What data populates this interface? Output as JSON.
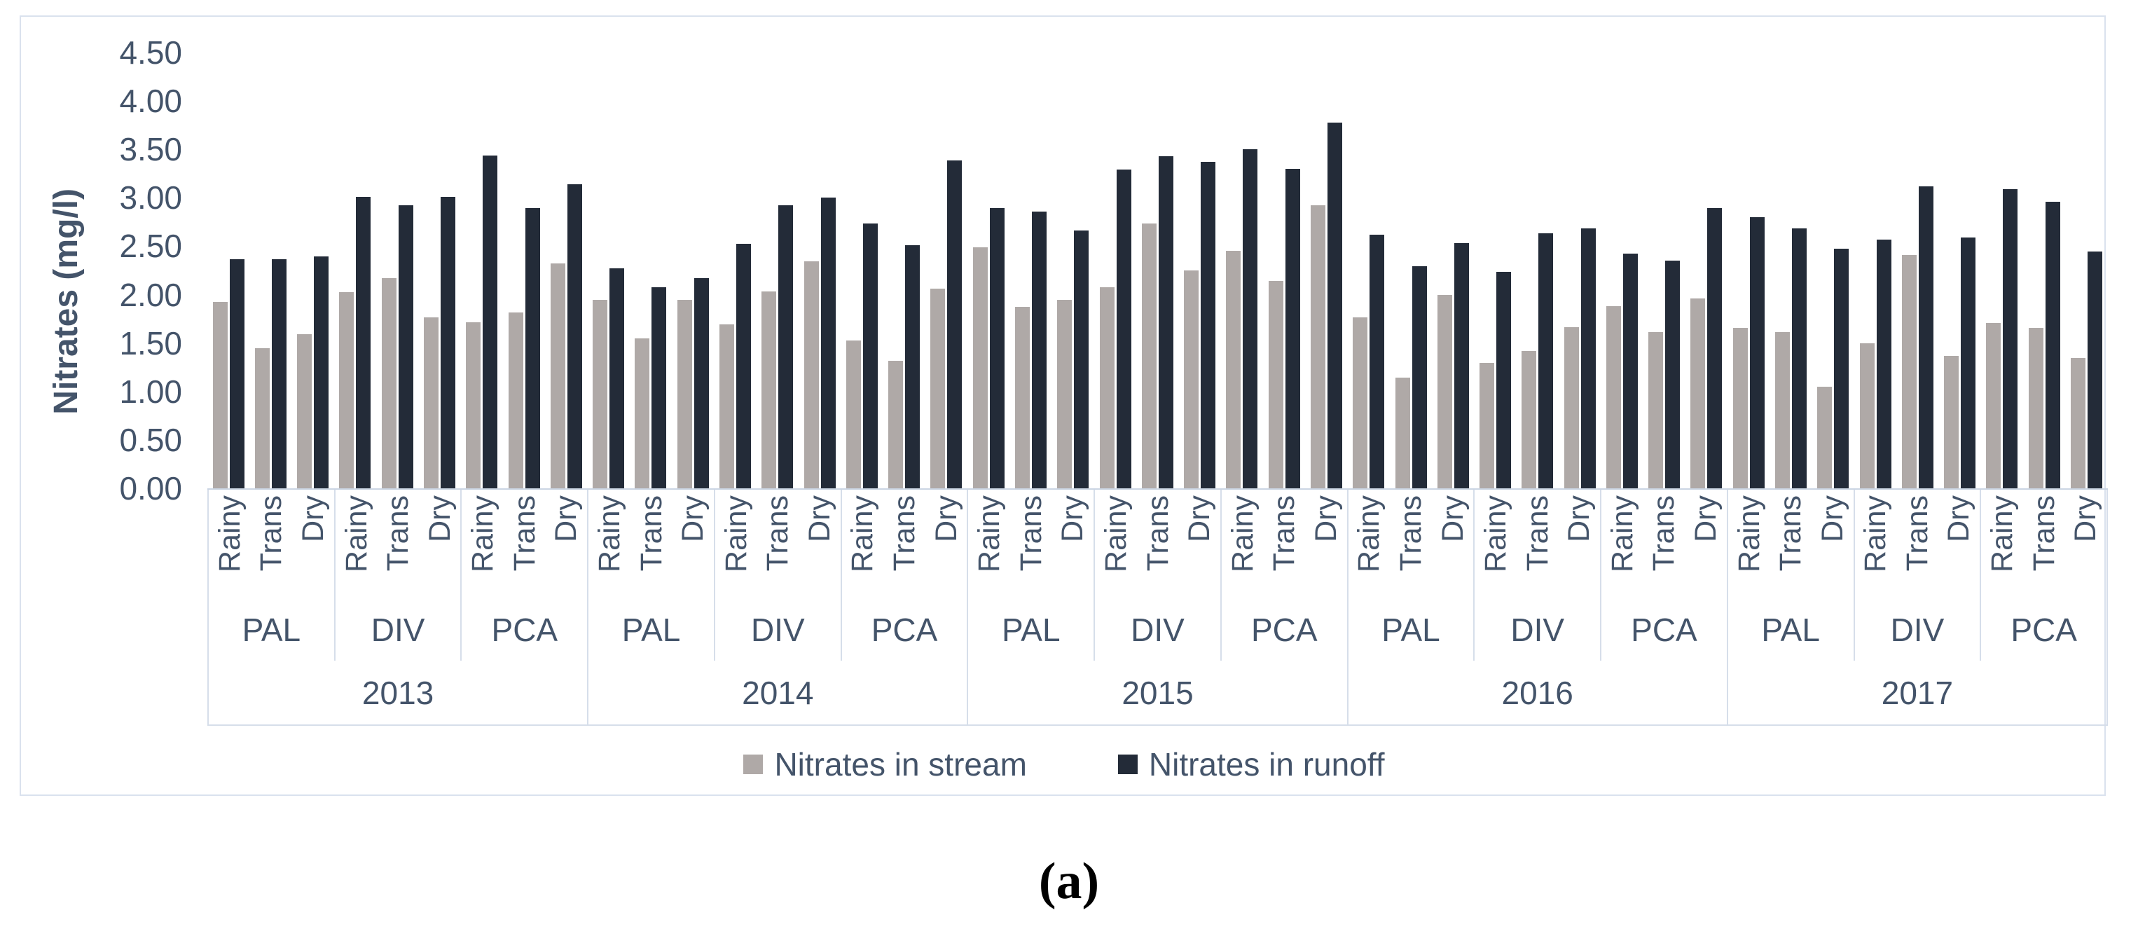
{
  "figure": {
    "caption": "(a)"
  },
  "colors": {
    "stream": "#AFA9A7",
    "runoff": "#232B38",
    "axis_text": "#44546A",
    "grid_line": "#D6DEEA"
  },
  "legend": {
    "items": [
      {
        "label": "Nitrates in stream",
        "color": "#AFA9A7"
      },
      {
        "label": "Nitrates in runoff",
        "color": "#232B38"
      }
    ]
  },
  "chart_data": {
    "type": "bar",
    "title": "",
    "xlabel": "",
    "ylabel": "Nitrates (mg/l)",
    "ylim": [
      0,
      4.5
    ],
    "ytick_step": 0.5,
    "yticks": [
      "4.50",
      "4.00",
      "3.50",
      "3.00",
      "2.50",
      "2.00",
      "1.50",
      "1.00",
      "0.50",
      "0.00"
    ],
    "grid": false,
    "legend_position": "bottom",
    "seasons": [
      "Rainy",
      "Trans",
      "Dry"
    ],
    "series_names": [
      "Nitrates in stream",
      "Nitrates in runoff"
    ],
    "years": [
      {
        "year": "2013",
        "sites": [
          {
            "site": "PAL",
            "stream": [
              1.93,
              1.45,
              1.6
            ],
            "runoff": [
              2.37,
              2.37,
              2.4
            ]
          },
          {
            "site": "DIV",
            "stream": [
              2.03,
              2.18,
              1.77
            ],
            "runoff": [
              3.02,
              2.93,
              3.02
            ]
          },
          {
            "site": "PCA",
            "stream": [
              1.72,
              1.82,
              2.33
            ],
            "runoff": [
              3.45,
              2.9,
              3.15
            ]
          }
        ]
      },
      {
        "year": "2014",
        "sites": [
          {
            "site": "PAL",
            "stream": [
              1.95,
              1.55,
              1.95
            ],
            "runoff": [
              2.28,
              2.08,
              2.18
            ]
          },
          {
            "site": "DIV",
            "stream": [
              1.7,
              2.04,
              2.35
            ],
            "runoff": [
              2.53,
              2.93,
              3.01
            ]
          },
          {
            "site": "PCA",
            "stream": [
              1.53,
              1.32,
              2.07
            ],
            "runoff": [
              2.74,
              2.52,
              3.4
            ]
          }
        ]
      },
      {
        "year": "2015",
        "sites": [
          {
            "site": "PAL",
            "stream": [
              2.5,
              1.88,
              1.95
            ],
            "runoff": [
              2.9,
              2.87,
              2.67
            ]
          },
          {
            "site": "DIV",
            "stream": [
              2.08,
              2.74,
              2.26
            ],
            "runoff": [
              3.3,
              3.44,
              3.38
            ]
          },
          {
            "site": "PCA",
            "stream": [
              2.46,
              2.15,
              2.93
            ],
            "runoff": [
              3.51,
              3.31,
              3.79
            ]
          }
        ]
      },
      {
        "year": "2016",
        "sites": [
          {
            "site": "PAL",
            "stream": [
              1.77,
              1.15,
              2.0
            ],
            "runoff": [
              2.63,
              2.3,
              2.54
            ]
          },
          {
            "site": "DIV",
            "stream": [
              1.3,
              1.42,
              1.67
            ],
            "runoff": [
              2.24,
              2.64,
              2.69
            ]
          },
          {
            "site": "PCA",
            "stream": [
              1.89,
              1.62,
              1.97
            ],
            "runoff": [
              2.43,
              2.36,
              2.9
            ]
          }
        ]
      },
      {
        "year": "2017",
        "sites": [
          {
            "site": "PAL",
            "stream": [
              1.66,
              1.62,
              1.05
            ],
            "runoff": [
              2.81,
              2.69,
              2.48
            ]
          },
          {
            "site": "DIV",
            "stream": [
              1.5,
              2.42,
              1.37
            ],
            "runoff": [
              2.58,
              3.13,
              2.6
            ]
          },
          {
            "site": "PCA",
            "stream": [
              1.71,
              1.66,
              1.35
            ],
            "runoff": [
              3.1,
              2.97,
              2.45
            ]
          }
        ]
      }
    ]
  }
}
